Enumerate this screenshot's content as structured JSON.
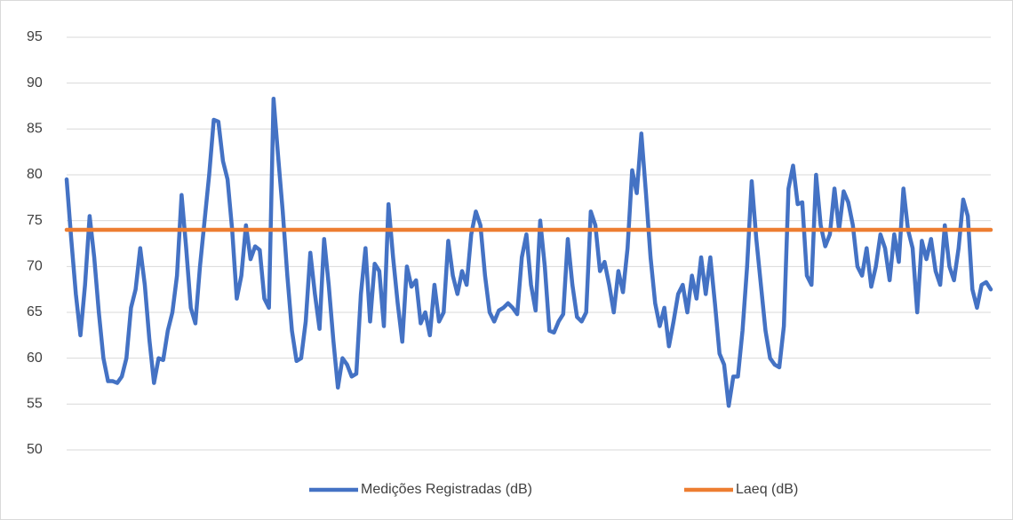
{
  "chart_data": {
    "type": "line",
    "series": [
      {
        "name": "Medições Registradas (dB)",
        "color": "#4472c4",
        "values": [
          79.5,
          73,
          67,
          62.5,
          68,
          75.5,
          71,
          65,
          60,
          57.5,
          57.5,
          57.3,
          58,
          60,
          65.5,
          67.5,
          72,
          68,
          62,
          57.3,
          60,
          59.8,
          63,
          65,
          69,
          77.8,
          72,
          65.5,
          63.8,
          70,
          75,
          80,
          86,
          85.8,
          81.5,
          79.5,
          74,
          66.5,
          69,
          74.5,
          70.8,
          72.2,
          71.8,
          66.5,
          65.5,
          88.3,
          82,
          76,
          69,
          63,
          59.7,
          60,
          64,
          71.5,
          67,
          63.2,
          73,
          68,
          62,
          56.8,
          60,
          59.3,
          58,
          58.3,
          67,
          72,
          64,
          70.3,
          69.5,
          63.5,
          76.8,
          71,
          66,
          61.8,
          70,
          67.8,
          68.5,
          63.8,
          65,
          62.5,
          68,
          64,
          65,
          72.8,
          69,
          67,
          69.5,
          68,
          73.5,
          76,
          74.5,
          69,
          65,
          64,
          65.2,
          65.5,
          66,
          65.5,
          64.8,
          71,
          73.5,
          68,
          65.2,
          75,
          70,
          63,
          62.8,
          64,
          64.8,
          73,
          68,
          64.5,
          64,
          65,
          76,
          74.5,
          69.5,
          70.5,
          68,
          65,
          69.5,
          67.2,
          72,
          80.5,
          78,
          84.5,
          78,
          71,
          66,
          63.5,
          65.5,
          61.3,
          64,
          67,
          68,
          65,
          69,
          66.5,
          71,
          67,
          71,
          66,
          60.5,
          59.3,
          54.8,
          58,
          58,
          63,
          70,
          79.3,
          73,
          68,
          63,
          60,
          59.3,
          59,
          63.5,
          78.5,
          81,
          76.8,
          77,
          69,
          68,
          80,
          74.5,
          72.2,
          73.5,
          78.5,
          74,
          78.2,
          77,
          74.5,
          70,
          69,
          72,
          67.8,
          70,
          73.5,
          72,
          68.5,
          73.5,
          70.5,
          78.5,
          74,
          72,
          65,
          72.8,
          70.8,
          73,
          69.5,
          68,
          74.5,
          70,
          68.5,
          72,
          77.3,
          75.5,
          67.5,
          65.5,
          68,
          68.3,
          67.5
        ]
      },
      {
        "name": "Laeq (dB)",
        "color": "#ed7d31",
        "values": [
          74,
          74,
          74,
          74,
          74,
          74,
          74,
          74,
          74,
          74,
          74,
          74,
          74,
          74,
          74,
          74,
          74,
          74,
          74,
          74,
          74,
          74,
          74,
          74,
          74,
          74,
          74,
          74,
          74,
          74,
          74,
          74,
          74,
          74,
          74,
          74,
          74,
          74,
          74,
          74,
          74,
          74,
          74,
          74,
          74,
          74,
          74,
          74,
          74,
          74,
          74,
          74,
          74,
          74,
          74,
          74,
          74,
          74,
          74,
          74,
          74,
          74,
          74,
          74,
          74,
          74,
          74,
          74,
          74,
          74,
          74,
          74,
          74,
          74,
          74,
          74,
          74,
          74,
          74,
          74,
          74,
          74,
          74,
          74,
          74,
          74,
          74,
          74,
          74,
          74,
          74,
          74,
          74,
          74,
          74,
          74,
          74,
          74,
          74,
          74,
          74,
          74,
          74,
          74,
          74,
          74,
          74,
          74,
          74,
          74,
          74,
          74,
          74,
          74,
          74,
          74,
          74,
          74,
          74,
          74,
          74,
          74,
          74,
          74,
          74,
          74,
          74,
          74,
          74,
          74,
          74,
          74,
          74,
          74,
          74,
          74,
          74,
          74,
          74,
          74,
          74,
          74,
          74,
          74,
          74,
          74,
          74,
          74,
          74,
          74,
          74,
          74,
          74,
          74,
          74,
          74,
          74,
          74,
          74,
          74,
          74,
          74,
          74,
          74,
          74,
          74,
          74,
          74,
          74,
          74,
          74,
          74,
          74,
          74,
          74,
          74,
          74,
          74,
          74,
          74,
          74,
          74,
          74,
          74,
          74,
          74,
          74,
          74,
          74,
          74,
          74,
          74,
          74,
          74,
          74,
          74,
          74,
          74,
          74,
          74,
          74,
          74
        ]
      }
    ],
    "ylim": [
      50,
      95
    ],
    "yticks": [
      50,
      55,
      60,
      65,
      70,
      75,
      80,
      85,
      90,
      95
    ],
    "grid": true,
    "legend": "bottom"
  }
}
